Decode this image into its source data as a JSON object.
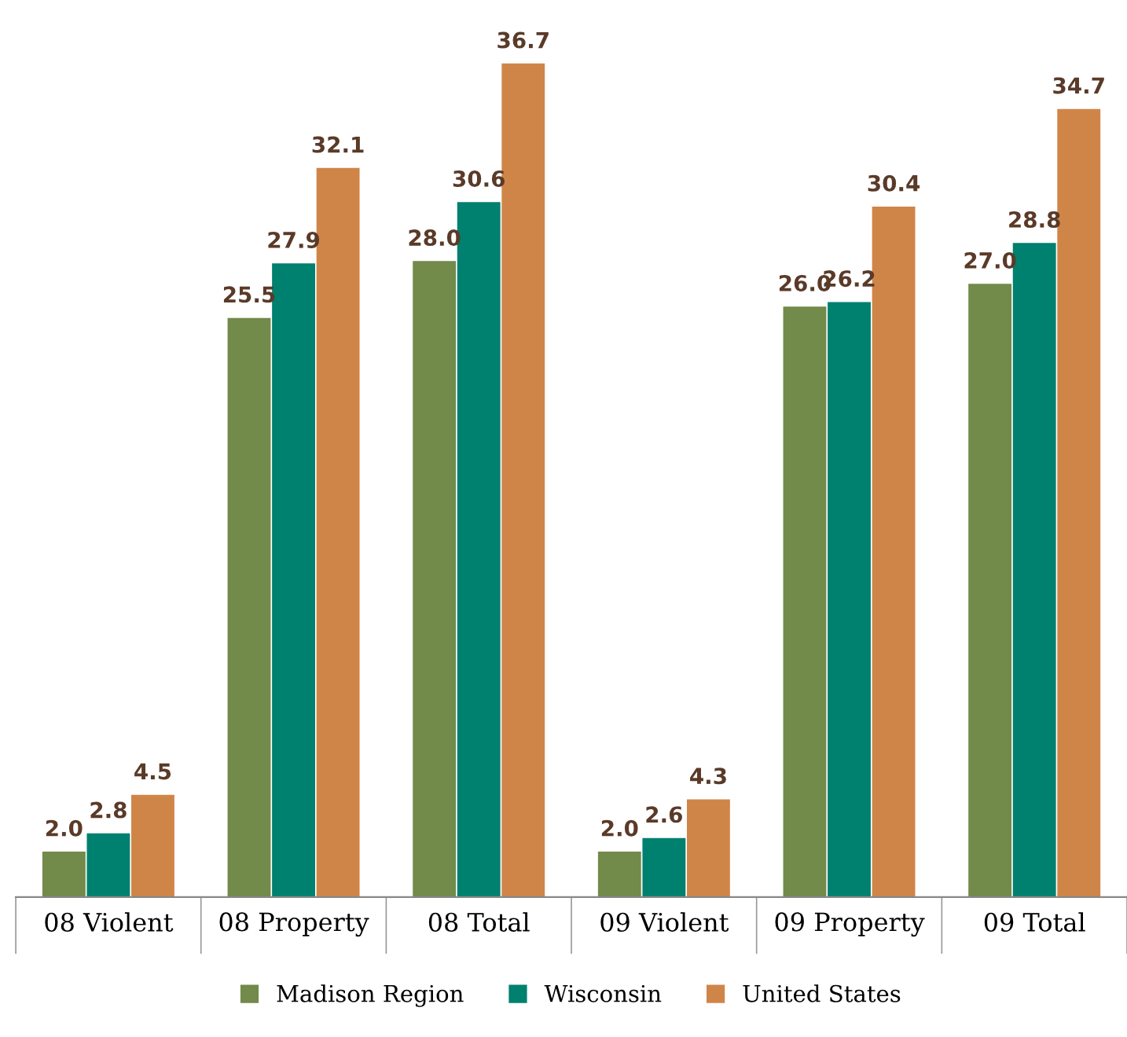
{
  "chart_data": {
    "type": "bar",
    "categories": [
      "08 Violent",
      "08 Property",
      "08 Total",
      "09 Violent",
      "09 Property",
      "09 Total"
    ],
    "series": [
      {
        "name": "Madison Region",
        "color": "#728a4a",
        "values": [
          2.0,
          25.5,
          28.0,
          2.0,
          26.0,
          27.0
        ],
        "value_labels": [
          "2.0",
          "25.5",
          "28.0",
          "2.0",
          "26.0",
          "27.0"
        ]
      },
      {
        "name": "Wisconsin",
        "color": "#00806f",
        "values": [
          2.8,
          27.9,
          30.6,
          2.6,
          26.2,
          28.8
        ],
        "value_labels": [
          "2.8",
          "27.9",
          "30.6",
          "2.6",
          "26.2",
          "28.8"
        ]
      },
      {
        "name": "United States",
        "color": "#d08548",
        "values": [
          4.5,
          32.1,
          36.7,
          4.3,
          30.4,
          34.7
        ],
        "value_labels": [
          "4.5",
          "32.1",
          "36.7",
          "4.3",
          "30.4",
          "34.7"
        ]
      }
    ],
    "legend": "bottom",
    "grid": false
  }
}
